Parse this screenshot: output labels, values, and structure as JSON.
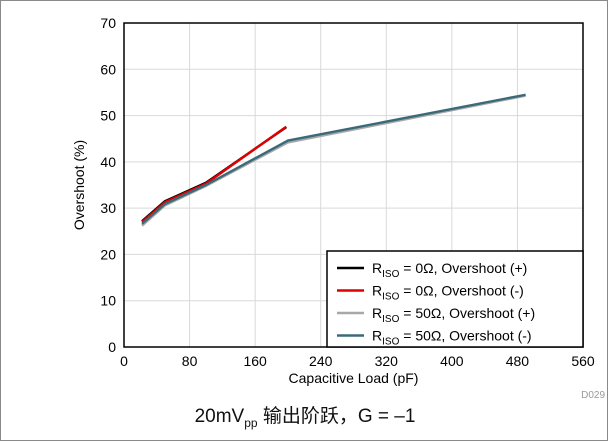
{
  "chart_data": {
    "type": "line",
    "xlabel": "Capacitive Load (pF)",
    "ylabel": "Overshoot (%)",
    "xlim": [
      0,
      560
    ],
    "ylim": [
      0,
      70
    ],
    "xticks": [
      0,
      80,
      160,
      240,
      320,
      400,
      480,
      560
    ],
    "yticks": [
      0,
      10,
      20,
      30,
      40,
      50,
      60,
      70
    ],
    "grid": true,
    "legend_position": "bottom-right",
    "series": [
      {
        "name_prefix": "R",
        "name_sub": "ISO",
        "name_suffix": " = 0Ω, Overshoot (+)",
        "color": "#000000",
        "x": [
          22,
          50,
          100,
          198
        ],
        "y": [
          27.2,
          31.5,
          35.5,
          47.5
        ]
      },
      {
        "name_prefix": "R",
        "name_sub": "ISO",
        "name_suffix": " = 0Ω, Overshoot (-)",
        "color": "#e00000",
        "x": [
          22,
          50,
          100,
          198
        ],
        "y": [
          27.0,
          31.3,
          35.3,
          47.6
        ]
      },
      {
        "name_prefix": "R",
        "name_sub": "ISO",
        "name_suffix": " = 50Ω, Overshoot (+)",
        "color": "#a8a8a8",
        "x": [
          22,
          50,
          100,
          200,
          490
        ],
        "y": [
          26.2,
          30.6,
          34.8,
          44.2,
          54.3
        ]
      },
      {
        "name_prefix": "R",
        "name_sub": "ISO",
        "name_suffix": " = 50Ω, Overshoot (-)",
        "color": "#3a6a7a",
        "x": [
          22,
          50,
          100,
          200,
          490
        ],
        "y": [
          26.6,
          30.9,
          35.0,
          44.6,
          54.5
        ]
      }
    ],
    "figure_id": "D029"
  },
  "caption": {
    "main": "20mV",
    "sub": "pp",
    "rest": " 输出阶跃，G = –1"
  }
}
